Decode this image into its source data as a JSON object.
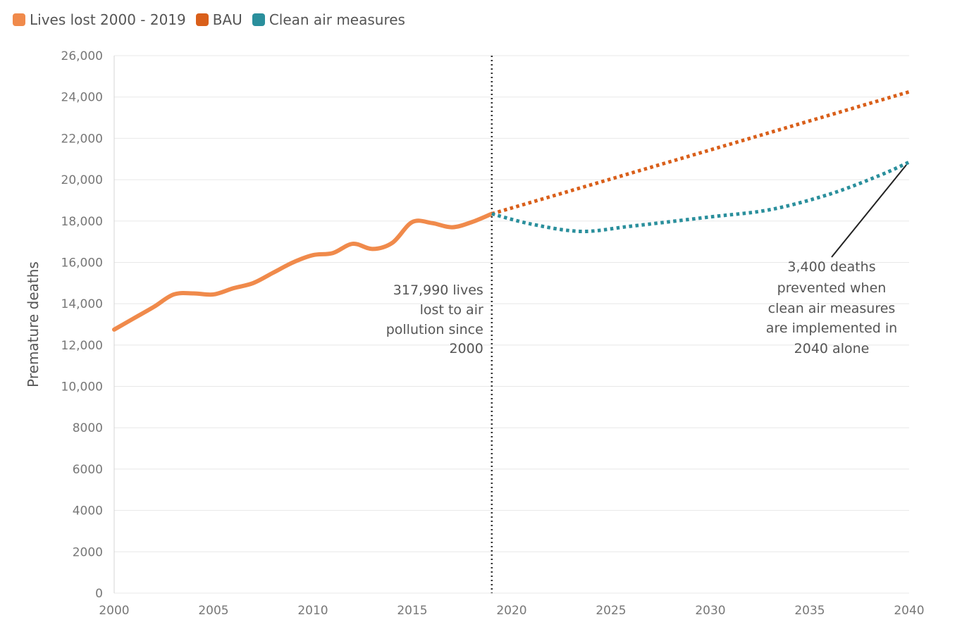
{
  "chart_data": {
    "type": "line",
    "ylabel": "Premature deaths",
    "xlim": [
      2000,
      2040
    ],
    "ylim": [
      0,
      26000
    ],
    "x_ticks": [
      "2000",
      "2005",
      "2010",
      "2015",
      "2020",
      "2025",
      "2030",
      "2035",
      "2040"
    ],
    "y_ticks": [
      "0",
      "2000",
      "4000",
      "6000",
      "8000",
      "10,000",
      "12,000",
      "14,000",
      "16,000",
      "18,000",
      "20,000",
      "22,000",
      "24,000",
      "26,000"
    ],
    "grid": "horizontal",
    "legend_position": "top-left",
    "series": [
      {
        "name": "Lives lost 2000 - 2019",
        "color": "#f08a4b",
        "style": "solid",
        "x": [
          2000,
          2001,
          2002,
          2003,
          2004,
          2005,
          2006,
          2007,
          2008,
          2009,
          2010,
          2011,
          2012,
          2013,
          2014,
          2015,
          2016,
          2017,
          2018,
          2019
        ],
        "y": [
          12750,
          13300,
          13850,
          14450,
          14500,
          14450,
          14750,
          15000,
          15500,
          16000,
          16350,
          16450,
          16900,
          16650,
          16950,
          17950,
          17900,
          17700,
          17950,
          18350
        ]
      },
      {
        "name": "BAU",
        "color": "#d95f1a",
        "style": "dotted",
        "x": [
          2019,
          2040
        ],
        "y": [
          18350,
          24250
        ]
      },
      {
        "name": "Clean air measures",
        "color": "#2a8f9c",
        "style": "dotted",
        "x": [
          2019,
          2021,
          2023.5,
          2026,
          2030,
          2033,
          2036,
          2038.5,
          2040
        ],
        "y": [
          18350,
          17850,
          17500,
          17750,
          18200,
          18550,
          19300,
          20200,
          20850
        ]
      }
    ],
    "divider_x": 2019,
    "annotations": [
      {
        "lines": [
          "317,990 lives",
          "lost to air",
          "pollution since",
          "2000"
        ]
      },
      {
        "lines": [
          "3,400 deaths",
          "prevented when",
          "clean air measures",
          "are implemented in",
          "2040 alone"
        ]
      }
    ]
  }
}
